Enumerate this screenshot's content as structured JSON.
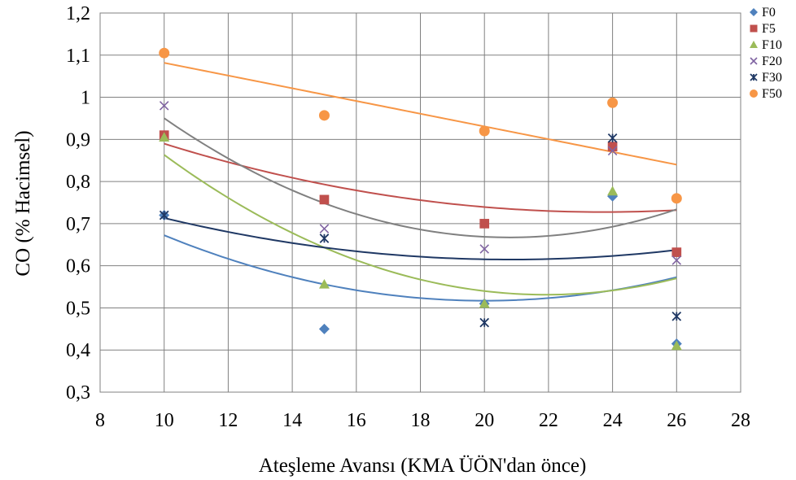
{
  "chart_data": {
    "type": "scatter",
    "xlabel": "Ateşleme Avansı (KMA ÜÖN'dan önce)",
    "ylabel": "CO (% Hacimsel)",
    "xlim": [
      8,
      28
    ],
    "ylim": [
      0.3,
      1.2
    ],
    "x_ticks": [
      "8",
      "10",
      "12",
      "14",
      "16",
      "18",
      "20",
      "22",
      "24",
      "26",
      "28"
    ],
    "y_ticks": [
      "0,3",
      "0,4",
      "0,5",
      "0,6",
      "0,7",
      "0,8",
      "0,9",
      "1",
      "1,1",
      "1,2"
    ],
    "x": [
      10,
      15,
      20,
      24,
      26
    ],
    "grid": true,
    "legend_position": "right",
    "series": [
      {
        "name": "F0",
        "marker": "diamond",
        "color": "#4F81BD",
        "trend_color": "#4F81BD",
        "values": [
          0.72,
          0.45,
          0.51,
          0.765,
          0.415
        ],
        "trend": "polynomial-2"
      },
      {
        "name": "F5",
        "marker": "square",
        "color": "#C0504D",
        "trend_color": "#C0504D",
        "values": [
          0.91,
          0.757,
          0.7,
          0.883,
          0.632
        ],
        "trend": "polynomial-2"
      },
      {
        "name": "F10",
        "marker": "triangle",
        "color": "#9BBB59",
        "trend_color": "#9BBB59",
        "values": [
          0.905,
          0.556,
          0.51,
          0.777,
          0.41
        ],
        "trend": "polynomial-2"
      },
      {
        "name": "F20",
        "marker": "x",
        "color": "#8064A2",
        "trend_color": "#808080",
        "values": [
          0.98,
          0.688,
          0.64,
          0.873,
          0.613
        ],
        "trend": "polynomial-2"
      },
      {
        "name": "F30",
        "marker": "star",
        "color": "#1F3864",
        "trend_color": "#1F3864",
        "values": [
          0.72,
          0.665,
          0.465,
          0.903,
          0.48
        ],
        "trend": "polynomial-2"
      },
      {
        "name": "F50",
        "marker": "circle",
        "color": "#F79646",
        "trend_color": "#F79646",
        "values": [
          1.105,
          0.957,
          0.92,
          0.987,
          0.76
        ],
        "trend": "linear"
      }
    ]
  }
}
